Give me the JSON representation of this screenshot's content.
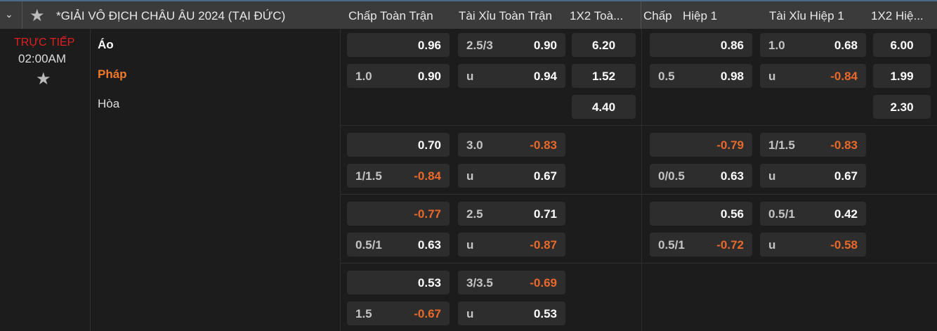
{
  "league": {
    "title": "*GIẢI VÔ ĐỊCH CHÂU ÂU 2024 (TẠI ĐỨC)"
  },
  "columns": [
    "Chấp Toàn Trận",
    "Tài Xỉu Toàn Trận",
    "1X2 Toà...",
    "Chấp",
    "Hiệp 1",
    "Tài Xỉu Hiệp 1",
    "1X2 Hiệ..."
  ],
  "match": {
    "status": "TRỰC TIẾP",
    "time": "02:00AM",
    "home": "Áo",
    "away": "Pháp",
    "draw": "Hòa"
  },
  "colors": {
    "negative": "#e8692a",
    "live": "#e02020",
    "away": "#f07a2a"
  },
  "blocks": [
    {
      "ft_hdp": [
        [
          "",
          "0.96"
        ],
        [
          "1.0",
          "0.90"
        ]
      ],
      "ft_ou": [
        [
          "2.5/3",
          "0.90"
        ],
        [
          "u",
          "0.94"
        ]
      ],
      "ft_1x2": [
        "6.20",
        "1.52",
        "4.40"
      ],
      "h1_hdp": [
        [
          "",
          "0.86"
        ],
        [
          "0.5",
          "0.98"
        ]
      ],
      "h1_ou": [
        [
          "1.0",
          "0.68"
        ],
        [
          "u",
          "-0.84"
        ]
      ],
      "h1_1x2": [
        "6.00",
        "1.99",
        "2.30"
      ]
    },
    {
      "ft_hdp": [
        [
          "",
          "0.70"
        ],
        [
          "1/1.5",
          "-0.84"
        ]
      ],
      "ft_ou": [
        [
          "3.0",
          "-0.83"
        ],
        [
          "u",
          "0.67"
        ]
      ],
      "h1_hdp": [
        [
          "",
          "-0.79"
        ],
        [
          "0/0.5",
          "0.63"
        ]
      ],
      "h1_ou": [
        [
          "1/1.5",
          "-0.83"
        ],
        [
          "u",
          "0.67"
        ]
      ]
    },
    {
      "ft_hdp": [
        [
          "",
          "-0.77"
        ],
        [
          "0.5/1",
          "0.63"
        ]
      ],
      "ft_ou": [
        [
          "2.5",
          "0.71"
        ],
        [
          "u",
          "-0.87"
        ]
      ],
      "h1_hdp": [
        [
          "",
          "0.56"
        ],
        [
          "0.5/1",
          "-0.72"
        ]
      ],
      "h1_ou": [
        [
          "0.5/1",
          "0.42"
        ],
        [
          "u",
          "-0.58"
        ]
      ]
    },
    {
      "ft_hdp": [
        [
          "",
          "0.53"
        ],
        [
          "1.5",
          "-0.67"
        ]
      ],
      "ft_ou": [
        [
          "3/3.5",
          "-0.69"
        ],
        [
          "u",
          "0.53"
        ]
      ]
    }
  ]
}
